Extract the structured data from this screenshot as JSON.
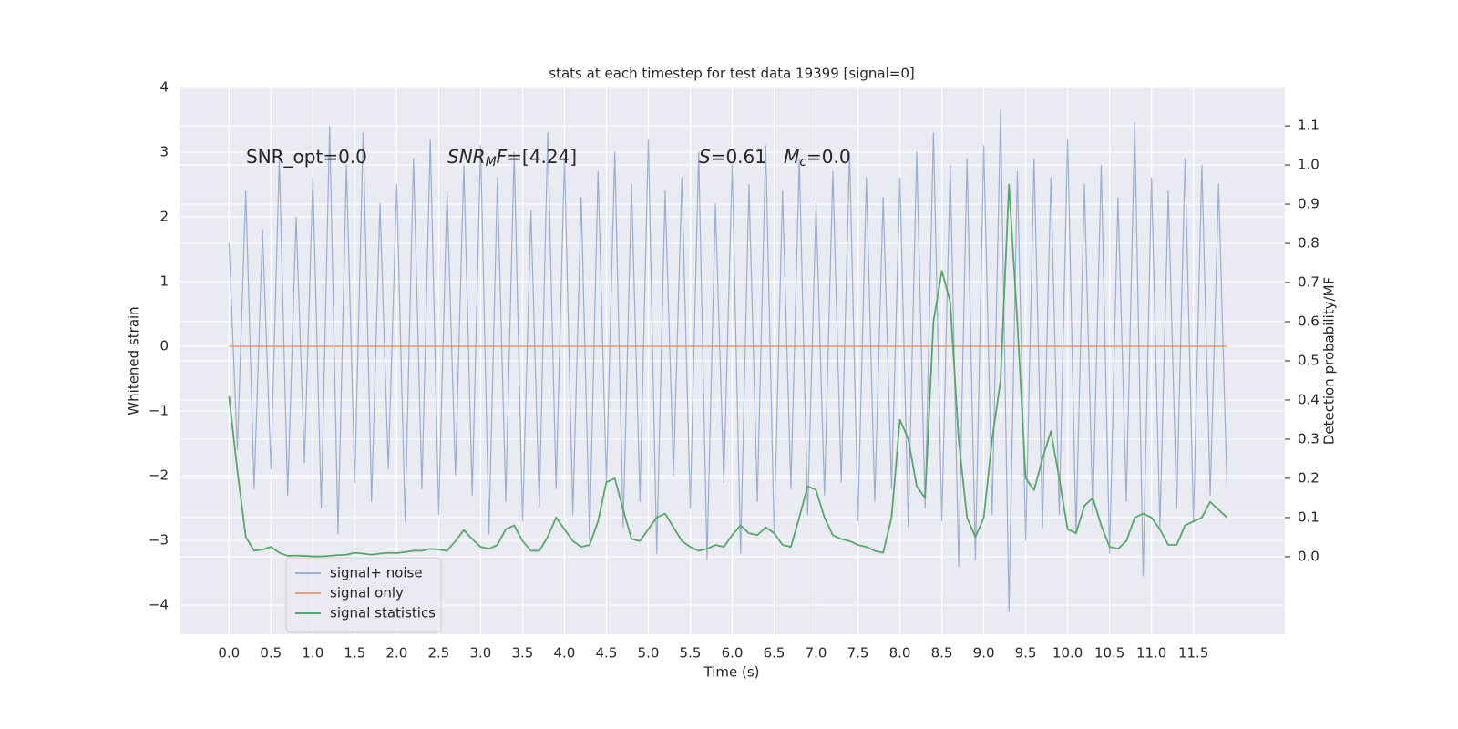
{
  "chart_data": {
    "type": "line",
    "title": "stats at each timestep for test data 19399 [signal=0]",
    "xlabel": "Time (s)",
    "ylabel": "Whitened strain",
    "y2label": "Detection probability/MF",
    "grid": true,
    "legend": "lower left",
    "xlim": [
      -0.59,
      12.59
    ],
    "ylim": [
      -4.45,
      4.0
    ],
    "y2lim": [
      -0.198,
      1.198
    ],
    "xticks": [
      {
        "value": 0,
        "label": "0.0"
      },
      {
        "value": 0.5,
        "label": "0.5"
      },
      {
        "value": 1,
        "label": "1.0"
      },
      {
        "value": 1.5,
        "label": "1.5"
      },
      {
        "value": 2,
        "label": "2.0"
      },
      {
        "value": 2.5,
        "label": "2.5"
      },
      {
        "value": 3,
        "label": "3.0"
      },
      {
        "value": 3.5,
        "label": "3.5"
      },
      {
        "value": 4,
        "label": "4.0"
      },
      {
        "value": 4.5,
        "label": "4.5"
      },
      {
        "value": 5,
        "label": "5.0"
      },
      {
        "value": 5.5,
        "label": "5.5"
      },
      {
        "value": 6,
        "label": "6.0"
      },
      {
        "value": 6.5,
        "label": "6.5"
      },
      {
        "value": 7,
        "label": "7.0"
      },
      {
        "value": 7.5,
        "label": "7.5"
      },
      {
        "value": 8,
        "label": "8.0"
      },
      {
        "value": 8.5,
        "label": "8.5"
      },
      {
        "value": 9,
        "label": "9.0"
      },
      {
        "value": 9.5,
        "label": "9.5"
      },
      {
        "value": 10,
        "label": "10.0"
      },
      {
        "value": 10.5,
        "label": "10.5"
      },
      {
        "value": 11,
        "label": "11.0"
      },
      {
        "value": 11.5,
        "label": "11.5"
      }
    ],
    "yticks": [
      {
        "value": -4,
        "label": "−4"
      },
      {
        "value": -3,
        "label": "−3"
      },
      {
        "value": -2,
        "label": "−2"
      },
      {
        "value": -1,
        "label": "−1"
      },
      0,
      1,
      2,
      3,
      4
    ],
    "y2ticks": [
      {
        "value": 0,
        "label": "0.0"
      },
      {
        "value": 0.1,
        "label": "0.1"
      },
      {
        "value": 0.2,
        "label": "0.2"
      },
      {
        "value": 0.3,
        "label": "0.3"
      },
      {
        "value": 0.4,
        "label": "0.4"
      },
      {
        "value": 0.5,
        "label": "0.5"
      },
      {
        "value": 0.6,
        "label": "0.6"
      },
      {
        "value": 0.7,
        "label": "0.7"
      },
      {
        "value": 0.8,
        "label": "0.8"
      },
      {
        "value": 0.9,
        "label": "0.9"
      },
      {
        "value": 1,
        "label": "1.0"
      },
      {
        "value": 1.1,
        "label": "1.1"
      }
    ],
    "annotations": [
      {
        "parts": [
          {
            "text": "SNR_opt=0.0",
            "style": "normal"
          }
        ]
      },
      {
        "parts": [
          {
            "text": "SNR",
            "style": "italic"
          },
          {
            "text": "M",
            "style": "sub"
          },
          {
            "text": "F",
            "style": "italic"
          },
          {
            "text": "=[4.24]",
            "style": "normal"
          }
        ]
      },
      {
        "parts": [
          {
            "text": "S",
            "style": "italic"
          },
          {
            "text": "=0.61   ",
            "style": "normal"
          },
          {
            "text": "M",
            "style": "italic"
          },
          {
            "text": "c",
            "style": "sub"
          },
          {
            "text": "=0.0",
            "style": "normal"
          }
        ]
      }
    ],
    "x": [
      0.0,
      0.1,
      0.2,
      0.3,
      0.4,
      0.5,
      0.6,
      0.7,
      0.8,
      0.9,
      1.0,
      1.1,
      1.2,
      1.3,
      1.4,
      1.5,
      1.6,
      1.7,
      1.8,
      1.9,
      2.0,
      2.1,
      2.2,
      2.3,
      2.4,
      2.5,
      2.6,
      2.7,
      2.8,
      2.9,
      3.0,
      3.1,
      3.2,
      3.3,
      3.4,
      3.5,
      3.6,
      3.7,
      3.8,
      3.9,
      4.0,
      4.1,
      4.2,
      4.3,
      4.4,
      4.5,
      4.6,
      4.7,
      4.8,
      4.9,
      5.0,
      5.1,
      5.2,
      5.3,
      5.4,
      5.5,
      5.6,
      5.7,
      5.8,
      5.9,
      6.0,
      6.1,
      6.2,
      6.3,
      6.4,
      6.5,
      6.6,
      6.7,
      6.8,
      6.9,
      7.0,
      7.1,
      7.2,
      7.3,
      7.4,
      7.5,
      7.6,
      7.7,
      7.8,
      7.9,
      8.0,
      8.1,
      8.2,
      8.3,
      8.4,
      8.5,
      8.6,
      8.7,
      8.8,
      8.9,
      9.0,
      9.1,
      9.2,
      9.3,
      9.4,
      9.5,
      9.6,
      9.7,
      9.8,
      9.9,
      10.0,
      10.1,
      10.2,
      10.3,
      10.4,
      10.5,
      10.6,
      10.7,
      10.8,
      10.9,
      11.0,
      11.1,
      11.2,
      11.3,
      11.4,
      11.5,
      11.6,
      11.7,
      11.8,
      11.9
    ],
    "series": [
      {
        "name": "signal+ noise",
        "color": "#4c72b0",
        "opacity": 0.5,
        "axis": "y",
        "values": [
          1.6,
          -1.6,
          2.4,
          -2.2,
          1.8,
          -1.9,
          2.9,
          -2.3,
          2.0,
          -1.8,
          2.6,
          -2.5,
          3.4,
          -2.9,
          2.8,
          -2.1,
          3.3,
          -2.4,
          2.2,
          -1.9,
          2.5,
          -2.7,
          2.9,
          -2.2,
          3.2,
          -2.6,
          2.4,
          -2.0,
          2.8,
          -2.3,
          3.1,
          -2.9,
          2.6,
          -2.4,
          3.0,
          -2.7,
          2.1,
          -2.5,
          3.3,
          -2.2,
          2.9,
          -2.6,
          2.3,
          -3.0,
          2.7,
          -2.1,
          3.0,
          -2.8,
          2.5,
          -2.4,
          3.2,
          -3.2,
          2.4,
          -2.0,
          2.6,
          -2.5,
          3.0,
          -3.3,
          2.2,
          -2.1,
          2.8,
          -3.2,
          2.5,
          -2.4,
          3.1,
          -2.9,
          2.4,
          -2.2,
          2.9,
          -2.6,
          2.2,
          -2.3,
          2.7,
          -2.1,
          3.0,
          -2.7,
          2.6,
          -2.4,
          2.3,
          -2.2,
          2.6,
          -2.8,
          3.0,
          -2.5,
          3.3,
          -2.7,
          2.8,
          -3.4,
          2.9,
          -3.3,
          3.1,
          -2.6,
          3.65,
          -4.1,
          2.7,
          -3.0,
          2.9,
          -2.8,
          2.6,
          -2.6,
          3.2,
          -2.9,
          2.5,
          -2.6,
          2.8,
          -3.2,
          2.3,
          -2.4,
          3.45,
          -3.55,
          2.6,
          -2.8,
          2.4,
          -2.5,
          2.9,
          -2.7,
          2.8,
          -2.3,
          2.5,
          -2.2
        ]
      },
      {
        "name": "signal only",
        "color": "#dd8452",
        "opacity": 0.7,
        "axis": "y",
        "values": [
          0,
          0,
          0,
          0,
          0,
          0,
          0,
          0,
          0,
          0,
          0,
          0,
          0,
          0,
          0,
          0,
          0,
          0,
          0,
          0,
          0,
          0,
          0,
          0,
          0,
          0,
          0,
          0,
          0,
          0,
          0,
          0,
          0,
          0,
          0,
          0,
          0,
          0,
          0,
          0,
          0,
          0,
          0,
          0,
          0,
          0,
          0,
          0,
          0,
          0,
          0,
          0,
          0,
          0,
          0,
          0,
          0,
          0,
          0,
          0,
          0,
          0,
          0,
          0,
          0,
          0,
          0,
          0,
          0,
          0,
          0,
          0,
          0,
          0,
          0,
          0,
          0,
          0,
          0,
          0,
          0,
          0,
          0,
          0,
          0,
          0,
          0,
          0,
          0,
          0,
          0,
          0,
          0,
          0,
          0,
          0,
          0,
          0,
          0,
          0,
          0,
          0,
          0,
          0,
          0,
          0,
          0,
          0,
          0,
          0,
          0,
          0,
          0,
          0,
          0,
          0,
          0,
          0,
          0,
          0
        ]
      },
      {
        "name": "signal statistics",
        "color": "#55a868",
        "opacity": 1,
        "axis": "y2",
        "values": [
          0.41,
          0.22,
          0.05,
          0.015,
          0.018,
          0.025,
          0.01,
          0.002,
          0.003,
          0.002,
          0.001,
          0.001,
          0.002,
          0.004,
          0.005,
          0.01,
          0.008,
          0.005,
          0.008,
          0.01,
          0.009,
          0.012,
          0.015,
          0.015,
          0.02,
          0.018,
          0.015,
          0.04,
          0.068,
          0.045,
          0.025,
          0.02,
          0.03,
          0.07,
          0.08,
          0.04,
          0.015,
          0.015,
          0.05,
          0.1,
          0.07,
          0.04,
          0.025,
          0.03,
          0.09,
          0.19,
          0.2,
          0.12,
          0.045,
          0.04,
          0.07,
          0.1,
          0.11,
          0.075,
          0.04,
          0.025,
          0.015,
          0.02,
          0.03,
          0.025,
          0.055,
          0.08,
          0.06,
          0.055,
          0.075,
          0.06,
          0.03,
          0.025,
          0.1,
          0.18,
          0.17,
          0.1,
          0.055,
          0.045,
          0.04,
          0.03,
          0.025,
          0.015,
          0.01,
          0.1,
          0.35,
          0.3,
          0.18,
          0.15,
          0.6,
          0.73,
          0.65,
          0.3,
          0.1,
          0.05,
          0.1,
          0.3,
          0.45,
          0.95,
          0.6,
          0.2,
          0.17,
          0.25,
          0.32,
          0.2,
          0.07,
          0.06,
          0.13,
          0.15,
          0.08,
          0.025,
          0.02,
          0.04,
          0.1,
          0.11,
          0.1,
          0.07,
          0.03,
          0.03,
          0.08,
          0.09,
          0.1,
          0.14,
          0.12,
          0.1
        ]
      }
    ]
  }
}
